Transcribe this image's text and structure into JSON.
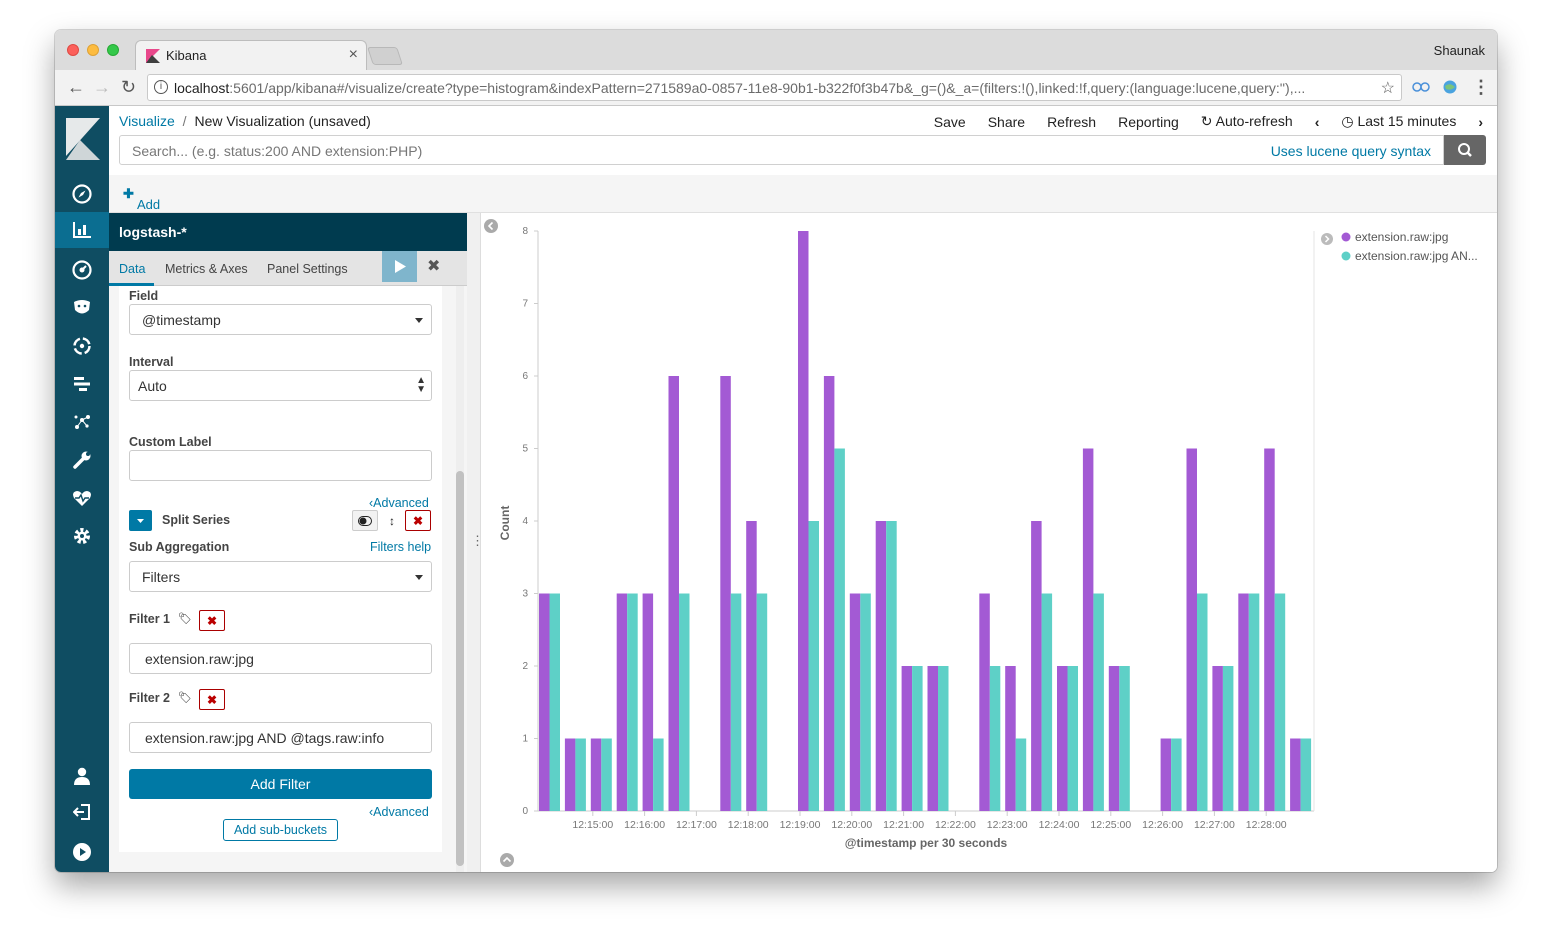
{
  "browser": {
    "tab_title": "Kibana",
    "user": "Shaunak",
    "url_host": "localhost",
    "url_rest": ":5601/app/kibana#/visualize/create?type=histogram&indexPattern=271589a0-0857-11e8-90b1-b322f0f3b47b&_g=()&_a=(filters:!(),linked:!f,query:(language:lucene,query:''),..."
  },
  "breadcrumb": {
    "root": "Visualize",
    "sep": "/",
    "current": "New Visualization (unsaved)"
  },
  "menu": {
    "save": "Save",
    "share": "Share",
    "refresh": "Refresh",
    "reporting": "Reporting",
    "auto_refresh": "Auto-refresh",
    "time": "Last 15 minutes"
  },
  "search": {
    "placeholder": "Search... (e.g. status:200 AND extension:PHP)",
    "syntax_link": "Uses lucene query syntax"
  },
  "filter_bar": {
    "add_filter": "Add a filter"
  },
  "sidebar": {
    "icons": [
      "compass-icon",
      "visualize-icon",
      "dashboard-icon",
      "timelion-icon",
      "ml-icon",
      "apm-icon",
      "graph-icon",
      "devtools-icon",
      "monitoring-icon",
      "management-icon"
    ],
    "bottom_icons": [
      "user-icon",
      "logout-icon",
      "collapse-icon"
    ],
    "active": "visualize-icon"
  },
  "panel": {
    "index": "logstash-*",
    "tabs": [
      "Data",
      "Metrics & Axes",
      "Panel Settings"
    ],
    "field_label": "Field",
    "field_value": "@timestamp",
    "interval_label": "Interval",
    "interval_value": "Auto",
    "custom_label": "Custom Label",
    "custom_value": "",
    "advanced": "Advanced",
    "split_series": "Split Series",
    "sub_agg_label": "Sub Aggregation",
    "filters_help": "Filters help",
    "sub_agg_value": "Filters",
    "filter1_label": "Filter 1",
    "filter1_value": "extension.raw:jpg",
    "filter2_label": "Filter 2",
    "filter2_value": "extension.raw:jpg AND @tags.raw:info",
    "add_filter_btn": "Add Filter",
    "advanced2": "Advanced",
    "add_sub_buckets": "Add sub-buckets"
  },
  "chart_data": {
    "type": "bar",
    "xlabel": "@timestamp per 30 seconds",
    "ylabel": "Count",
    "ylim": [
      0,
      8
    ],
    "y_ticks": [
      0,
      1,
      2,
      3,
      4,
      5,
      6,
      7,
      8
    ],
    "x_tick_labels": [
      "12:15:00",
      "12:16:00",
      "12:17:00",
      "12:18:00",
      "12:19:00",
      "12:20:00",
      "12:21:00",
      "12:22:00",
      "12:23:00",
      "12:24:00",
      "12:25:00",
      "12:26:00",
      "12:27:00",
      "12:28:00"
    ],
    "legend_position": "top-right",
    "colors": [
      "#a35ad4",
      "#5ed0c7"
    ],
    "series": [
      {
        "name": "extension.raw:jpg",
        "values": [
          3,
          1,
          1,
          3,
          3,
          6,
          0,
          6,
          4,
          0,
          8,
          6,
          3,
          4,
          2,
          2,
          0,
          3,
          2,
          4,
          2,
          5,
          2,
          0,
          1,
          5,
          2,
          3,
          5,
          1
        ]
      },
      {
        "name": "extension.raw:jpg AN...",
        "values": [
          3,
          1,
          1,
          3,
          1,
          3,
          0,
          3,
          3,
          0,
          4,
          5,
          3,
          4,
          2,
          2,
          0,
          2,
          1,
          3,
          2,
          3,
          2,
          0,
          1,
          3,
          2,
          3,
          3,
          1
        ]
      }
    ]
  }
}
